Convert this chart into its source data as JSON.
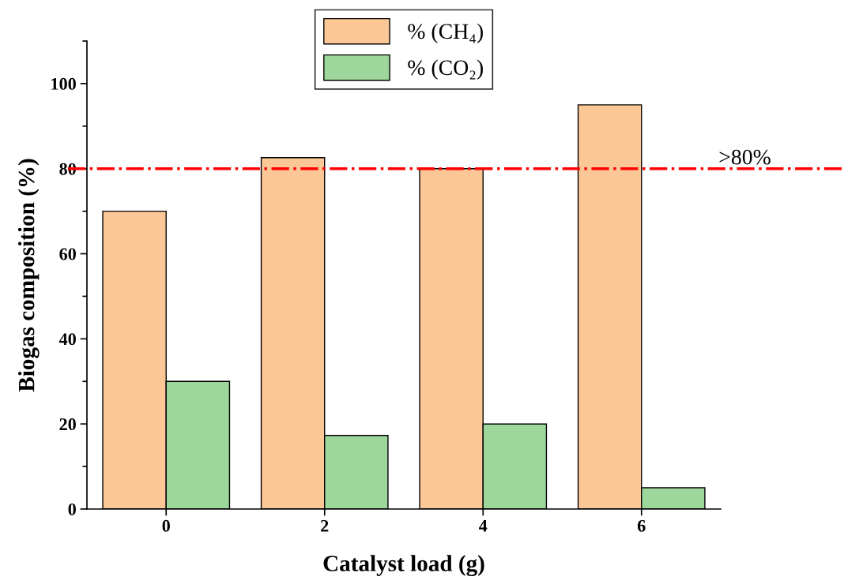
{
  "chart_data": {
    "type": "bar",
    "xlabel": "Catalyst load (g)",
    "ylabel": "Biogas composition (%)",
    "categories": [
      "0",
      "2",
      "4",
      "6"
    ],
    "series": [
      {
        "name": "% (CH₄)",
        "color": "#fbc797",
        "values": [
          70,
          82.6,
          80,
          95
        ]
      },
      {
        "name": "% (CO₂)",
        "color": "#9dd79b",
        "values": [
          30,
          17.3,
          20,
          5
        ]
      }
    ],
    "ylim": [
      0,
      110
    ],
    "yticks": [
      0,
      20,
      40,
      60,
      80,
      100
    ],
    "ref_lines": [
      {
        "axis": "y",
        "value": 80,
        "label": ">80%",
        "color": "#ff0000",
        "line_style": "dashdot"
      }
    ],
    "legend": "top",
    "grid": false
  }
}
